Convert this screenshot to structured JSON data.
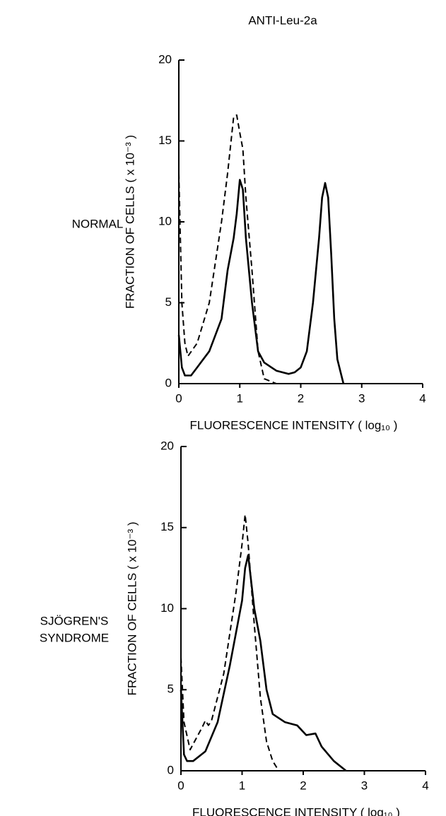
{
  "chart_data": [
    {
      "type": "line",
      "title": "ANTI-Leu-2a",
      "panel_label": [
        "NORMAL"
      ],
      "ylabel": "FRACTION OF CELLS ( x 10⁻³ )",
      "xlabel": "FLUORESCENCE INTENSITY ( log₁₀ )",
      "xlim": [
        0,
        4
      ],
      "xticks": [
        0,
        1,
        2,
        3,
        4
      ],
      "ylim": [
        0,
        20
      ],
      "yticks": [
        0,
        5,
        10,
        15,
        20
      ],
      "series": [
        {
          "color": "#000000",
          "style": "solid",
          "x": [
            0,
            0.05,
            0.1,
            0.2,
            0.3,
            0.5,
            0.7,
            0.8,
            0.9,
            0.95,
            1.0,
            1.05,
            1.1,
            1.2,
            1.3,
            1.4,
            1.6,
            1.8,
            1.9,
            2.0,
            2.1,
            2.2,
            2.3,
            2.35,
            2.4,
            2.45,
            2.5,
            2.55,
            2.6,
            2.7
          ],
          "values": [
            3,
            1,
            0.5,
            0.5,
            1,
            2,
            4,
            7,
            9,
            10.5,
            12.6,
            12,
            9,
            5,
            2,
            1.3,
            0.8,
            0.6,
            0.7,
            1,
            2,
            5,
            9,
            11.5,
            12.4,
            11.5,
            8,
            4,
            1.5,
            0
          ]
        },
        {
          "color": "#000000",
          "style": "dashed",
          "x": [
            0,
            0.05,
            0.1,
            0.15,
            0.3,
            0.5,
            0.7,
            0.8,
            0.9,
            0.95,
            1.0,
            1.05,
            1.1,
            1.2,
            1.3,
            1.4,
            1.6
          ],
          "values": [
            13,
            5,
            2.5,
            1.7,
            2.5,
            5,
            10,
            13,
            16.5,
            16.6,
            15.5,
            14.5,
            11.5,
            7,
            2,
            0.3,
            0
          ]
        }
      ]
    },
    {
      "type": "line",
      "panel_label": [
        "SJÖGREN'S",
        "SYNDROME"
      ],
      "ylabel": "FRACTION OF CELLS ( x 10⁻³ )",
      "xlabel": "FLUORESCENCE INTENSITY ( log₁₀ )",
      "xlim": [
        0,
        4
      ],
      "xticks": [
        0,
        1,
        2,
        3,
        4
      ],
      "ylim": [
        0,
        20
      ],
      "yticks": [
        0,
        5,
        10,
        15,
        20
      ],
      "series": [
        {
          "color": "#000000",
          "style": "solid",
          "x": [
            0,
            0.05,
            0.1,
            0.2,
            0.4,
            0.6,
            0.8,
            1.0,
            1.05,
            1.1,
            1.2,
            1.3,
            1.4,
            1.5,
            1.7,
            1.9,
            2.05,
            2.2,
            2.3,
            2.5,
            2.7
          ],
          "values": [
            5,
            1,
            0.6,
            0.6,
            1.2,
            3,
            6.5,
            10.5,
            12.5,
            13.3,
            10,
            8,
            5,
            3.5,
            3,
            2.8,
            2.2,
            2.3,
            1.5,
            0.6,
            0
          ]
        },
        {
          "color": "#000000",
          "style": "dashed",
          "x": [
            0,
            0.05,
            0.15,
            0.25,
            0.35,
            0.4,
            0.45,
            0.5,
            0.7,
            0.9,
            1.0,
            1.05,
            1.1,
            1.2,
            1.3,
            1.4,
            1.5,
            1.6
          ],
          "values": [
            7,
            3,
            1.3,
            2,
            2.7,
            3.1,
            2.8,
            3.1,
            6,
            11,
            14,
            15.8,
            14,
            9,
            4.5,
            1.8,
            0.6,
            0
          ]
        }
      ]
    }
  ]
}
